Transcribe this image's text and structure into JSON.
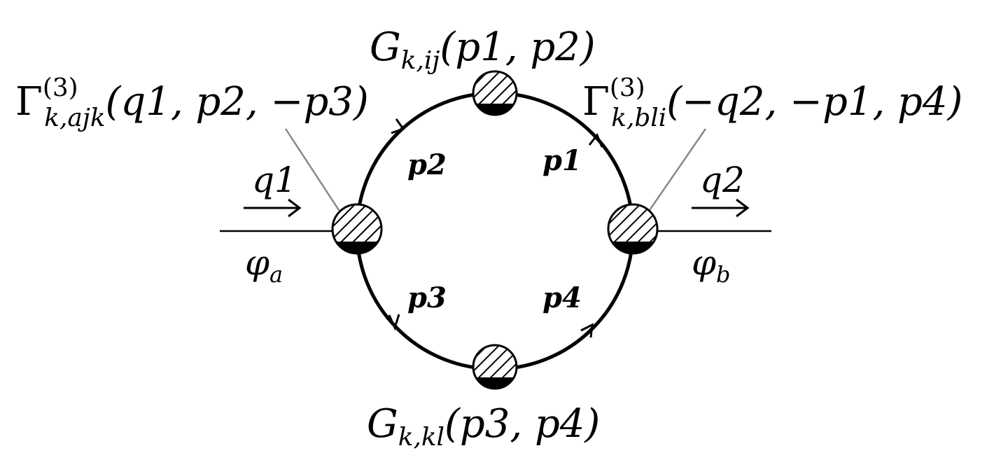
{
  "propagators": {
    "top": {
      "symbol": "G",
      "indices": "k,ij",
      "args": "(p1, p2)"
    },
    "bottom": {
      "symbol": "G",
      "indices": "k,kl",
      "args": "(p3, p4)"
    }
  },
  "vertices": {
    "left": {
      "symbol": "Γ",
      "superscript": "(3)",
      "indices": "k,ajk",
      "args": "(q1, p2, −p3)"
    },
    "right": {
      "symbol": "Γ",
      "superscript": "(3)",
      "indices": "k,bli",
      "args": "(−q2, −p1, p4)"
    }
  },
  "internal_momenta": [
    "p1",
    "p2",
    "p3",
    "p4"
  ],
  "external": {
    "left": {
      "momentum": "q1",
      "field": "φ",
      "field_index": "a"
    },
    "right": {
      "momentum": "q2",
      "field": "φ",
      "field_index": "b"
    }
  },
  "colors": {
    "ink": "#000000",
    "leader": "#888888"
  }
}
